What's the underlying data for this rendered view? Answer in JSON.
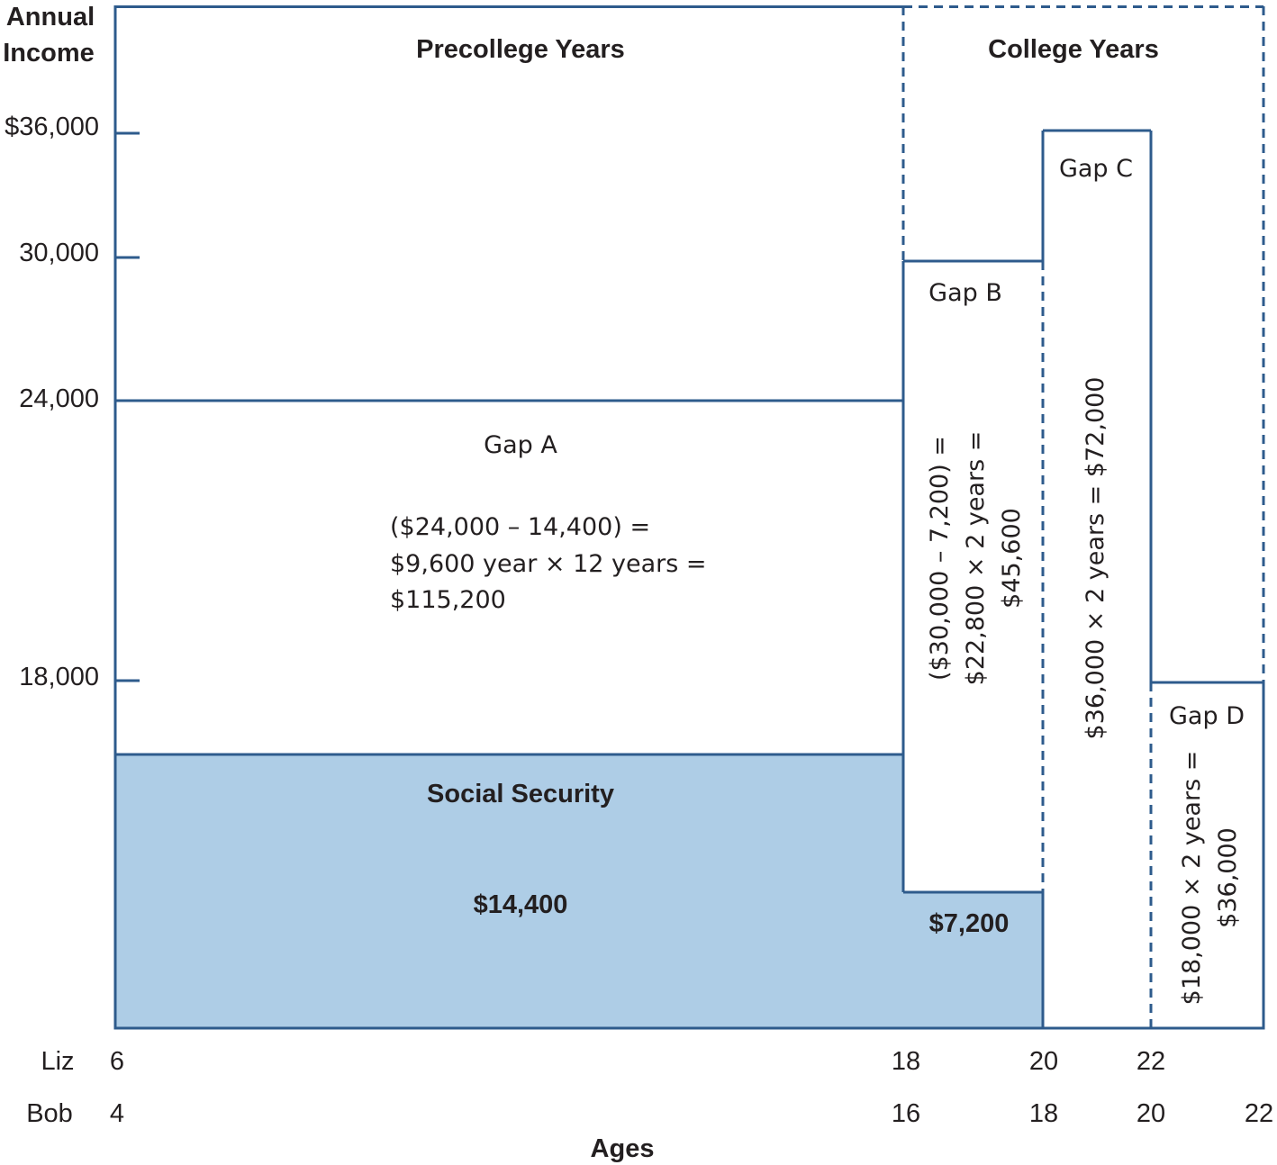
{
  "axis": {
    "y_title_line1": "Annual",
    "y_title_line2": "Income",
    "y_ticks": [
      "$36,000",
      "30,000",
      "24,000",
      "18,000"
    ],
    "x_title": "Ages",
    "rows": [
      {
        "name": "Liz",
        "ages": [
          "6",
          "18",
          "20",
          "22"
        ]
      },
      {
        "name": "Bob",
        "ages": [
          "4",
          "16",
          "18",
          "20",
          "22"
        ]
      }
    ]
  },
  "sections": {
    "precollege": "Precollege Years",
    "college": "College Years"
  },
  "gap_a": {
    "title": "Gap A",
    "line1": "($24,000 – 14,400) =",
    "line2": "$9,600 year × 12 years =",
    "line3": "$115,200"
  },
  "gap_b": {
    "title": "Gap B",
    "line1": "($30,000 – 7,200) =",
    "line2": "$22,800  × 2 years =",
    "line3": "$45,600"
  },
  "gap_c": {
    "title": "Gap C",
    "line1": "$36,000  × 2 years = $72,000"
  },
  "gap_d": {
    "title": "Gap D",
    "line1": "$18,000  × 2 years =",
    "line2": "$36,000"
  },
  "social_security": {
    "title": "Social Security",
    "amount_precollege": "$14,400",
    "amount_college": "$7,200"
  },
  "colors": {
    "line": "#2e5b8c",
    "fill": "#aecde6",
    "text": "#231f20"
  }
}
